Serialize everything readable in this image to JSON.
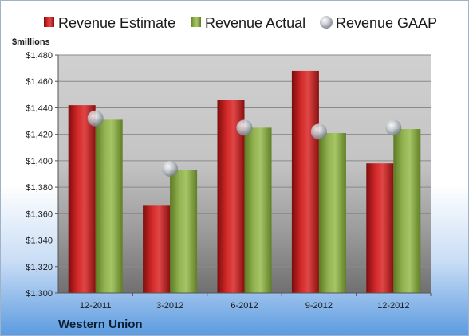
{
  "chart_data": {
    "type": "bar",
    "categories": [
      "12-2011",
      "3-2012",
      "6-2012",
      "9-2012",
      "12-2012"
    ],
    "series": [
      {
        "name": "Revenue Estimate",
        "kind": "bar",
        "color": "#cc1f1f",
        "values": [
          1442,
          1366,
          1446,
          1468,
          1398
        ]
      },
      {
        "name": "Revenue Actual",
        "kind": "bar",
        "color": "#8fb04a",
        "values": [
          1431,
          1393,
          1425,
          1421,
          1424
        ]
      },
      {
        "name": "Revenue GAAP",
        "kind": "marker",
        "color": "#b9bec7",
        "values": [
          1432,
          1394,
          1425,
          1422,
          1425
        ]
      }
    ],
    "ylabel": "$millions",
    "ylim": [
      1300,
      1480
    ],
    "yticks": [
      1300,
      1320,
      1340,
      1360,
      1380,
      1400,
      1420,
      1440,
      1460,
      1480
    ],
    "ytick_labels": [
      "$1,300",
      "$1,320",
      "$1,340",
      "$1,360",
      "$1,380",
      "$1,400",
      "$1,420",
      "$1,440",
      "$1,460",
      "$1,480"
    ],
    "grid": true,
    "legend_position": "top",
    "company": "Western Union"
  }
}
